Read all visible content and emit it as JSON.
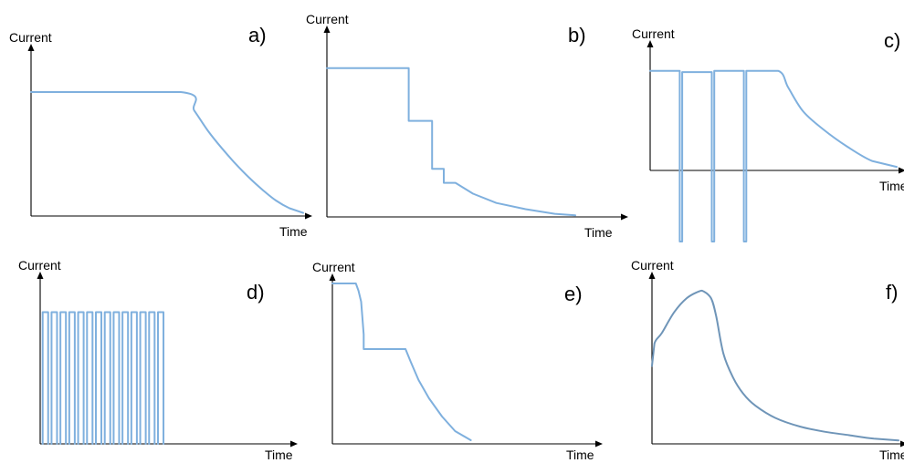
{
  "chart_data": [
    {
      "type": "line",
      "panel_label": "a)",
      "ylabel": "Current",
      "xlabel": "Time",
      "series": [
        {
          "x": [
            0,
            0.55,
            0.6,
            0.65,
            0.7,
            0.75,
            0.8,
            0.85,
            0.9,
            0.95,
            1.0
          ],
          "y": [
            0.8,
            0.8,
            0.68,
            0.55,
            0.44,
            0.34,
            0.25,
            0.17,
            0.1,
            0.05,
            0.02
          ]
        }
      ]
    },
    {
      "type": "line",
      "panel_label": "b)",
      "ylabel": "Current",
      "xlabel": "Time",
      "series": [
        {
          "x": [
            0,
            0.28,
            0.28,
            0.36,
            0.36,
            0.4,
            0.4,
            0.44,
            0.44,
            0.5,
            0.58,
            0.68,
            0.78,
            0.85
          ],
          "y": [
            0.96,
            0.96,
            0.62,
            0.62,
            0.31,
            0.31,
            0.22,
            0.22,
            0.22,
            0.15,
            0.09,
            0.05,
            0.02,
            0.01
          ]
        }
      ]
    },
    {
      "type": "line",
      "panel_label": "c)",
      "ylabel": "Current",
      "xlabel": "Time",
      "series": [
        {
          "x": [
            0,
            0.12,
            0.12,
            0.13,
            0.13,
            0.25,
            0.25,
            0.26,
            0.26,
            0.38,
            0.38,
            0.39,
            0.39,
            0.52,
            0.56,
            0.62,
            0.7,
            0.8,
            0.9,
            1.0
          ],
          "y": [
            0.84,
            0.84,
            -0.6,
            -0.6,
            0.83,
            0.83,
            -0.6,
            -0.6,
            0.84,
            0.84,
            -0.6,
            -0.6,
            0.84,
            0.84,
            0.7,
            0.5,
            0.35,
            0.2,
            0.08,
            0.03
          ]
        }
      ]
    },
    {
      "type": "line",
      "panel_label": "d)",
      "ylabel": "Current",
      "xlabel": "Time",
      "pulses": 14,
      "series": [
        {
          "x": [
            0,
            0.5
          ],
          "y": [
            0.85,
            0.85
          ]
        }
      ]
    },
    {
      "type": "line",
      "panel_label": "e)",
      "ylabel": "Current",
      "xlabel": "Time",
      "series": [
        {
          "x": [
            0,
            0.09,
            0.1,
            0.11,
            0.12,
            0.12,
            0.28,
            0.3,
            0.33,
            0.37,
            0.42,
            0.47,
            0.53
          ],
          "y": [
            0.88,
            0.88,
            0.84,
            0.78,
            0.6,
            0.52,
            0.52,
            0.45,
            0.35,
            0.25,
            0.15,
            0.07,
            0.02
          ]
        }
      ]
    },
    {
      "type": "line",
      "panel_label": "f)",
      "ylabel": "Current",
      "xlabel": "Time",
      "series": [
        {
          "x": [
            0,
            0.01,
            0.04,
            0.09,
            0.14,
            0.19,
            0.21,
            0.24,
            0.26,
            0.29,
            0.33,
            0.37,
            0.42,
            0.5,
            0.6,
            0.7,
            0.8,
            0.9,
            1.0
          ],
          "y": [
            0.45,
            0.58,
            0.64,
            0.76,
            0.84,
            0.88,
            0.88,
            0.84,
            0.74,
            0.52,
            0.38,
            0.29,
            0.22,
            0.15,
            0.1,
            0.07,
            0.05,
            0.03,
            0.02
          ]
        }
      ]
    }
  ]
}
